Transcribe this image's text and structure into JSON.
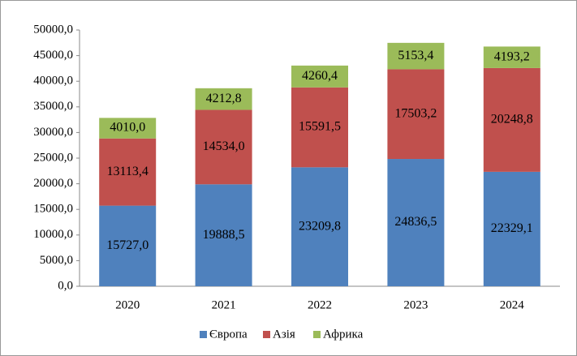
{
  "chart_data": {
    "type": "bar",
    "stacked": true,
    "categories": [
      "2020",
      "2021",
      "2022",
      "2023",
      "2024"
    ],
    "series": [
      {
        "name": "Європа",
        "color": "#4f81bd",
        "values": [
          15727.0,
          19888.5,
          23209.8,
          24836.5,
          22329.1
        ],
        "value_labels": [
          "15727,0",
          "19888,5",
          "23209,8",
          "24836,5",
          "22329,1"
        ]
      },
      {
        "name": "Азія",
        "color": "#c0504d",
        "values": [
          13113.4,
          14534.0,
          15591.5,
          17503.2,
          20248.8
        ],
        "value_labels": [
          "13113,4",
          "14534,0",
          "15591,5",
          "17503,2",
          "20248,8"
        ]
      },
      {
        "name": "Африка",
        "color": "#9bbb59",
        "values": [
          4010.0,
          4212.8,
          4260.4,
          5153.4,
          4193.2
        ],
        "value_labels": [
          "4010,0",
          "4212,8",
          "4260,4",
          "5153,4",
          "4193,2"
        ]
      }
    ],
    "ylim": [
      0,
      50000
    ],
    "yticks": [
      {
        "value": 0,
        "label": "0,0"
      },
      {
        "value": 5000,
        "label": "5000,0"
      },
      {
        "value": 10000,
        "label": "10000,0"
      },
      {
        "value": 15000,
        "label": "15000,0"
      },
      {
        "value": 20000,
        "label": "20000,0"
      },
      {
        "value": 25000,
        "label": "25000,0"
      },
      {
        "value": 30000,
        "label": "30000,0"
      },
      {
        "value": 35000,
        "label": "35000,0"
      },
      {
        "value": 40000,
        "label": "40000,0"
      },
      {
        "value": 45000,
        "label": "45000,0"
      },
      {
        "value": 50000,
        "label": "50000,0"
      }
    ],
    "grid": false,
    "legend": "bottom"
  }
}
